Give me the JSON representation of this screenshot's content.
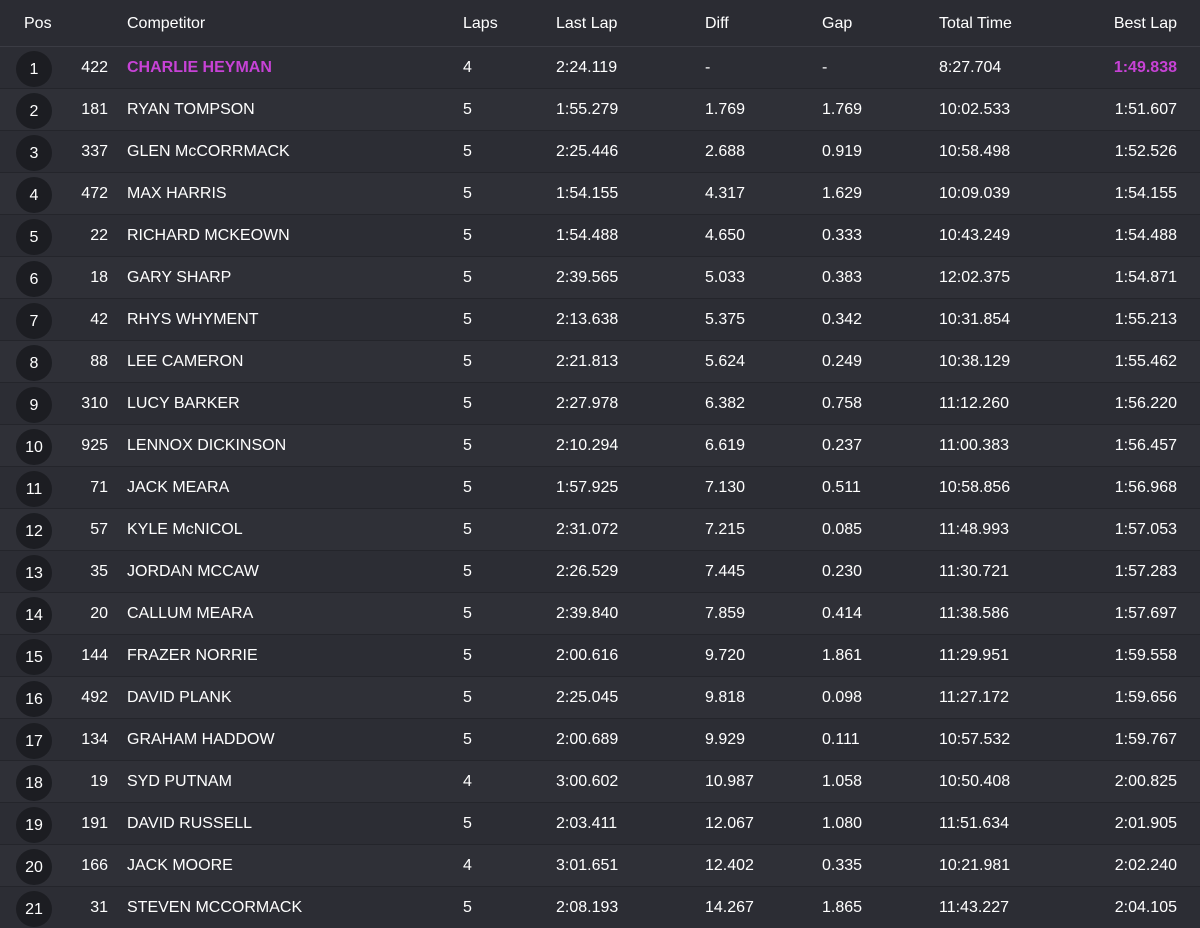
{
  "columns": {
    "pos": "Pos",
    "competitor": "Competitor",
    "laps": "Laps",
    "last_lap": "Last Lap",
    "diff": "Diff",
    "gap": "Gap",
    "total_time": "Total Time",
    "best_lap": "Best Lap"
  },
  "highlight_color": "#c742d6",
  "rows": [
    {
      "pos": "1",
      "num": "422",
      "name": "CHARLIE HEYMAN",
      "laps": "4",
      "last": "2:24.119",
      "diff": "-",
      "gap": "-",
      "total": "8:27.704",
      "best": "1:49.838",
      "highlight": true
    },
    {
      "pos": "2",
      "num": "181",
      "name": "RYAN TOMPSON",
      "laps": "5",
      "last": "1:55.279",
      "diff": "1.769",
      "gap": "1.769",
      "total": "10:02.533",
      "best": "1:51.607"
    },
    {
      "pos": "3",
      "num": "337",
      "name": "GLEN McCORRMACK",
      "laps": "5",
      "last": "2:25.446",
      "diff": "2.688",
      "gap": "0.919",
      "total": "10:58.498",
      "best": "1:52.526"
    },
    {
      "pos": "4",
      "num": "472",
      "name": "MAX HARRIS",
      "laps": "5",
      "last": "1:54.155",
      "diff": "4.317",
      "gap": "1.629",
      "total": "10:09.039",
      "best": "1:54.155"
    },
    {
      "pos": "5",
      "num": "22",
      "name": "RICHARD MCKEOWN",
      "laps": "5",
      "last": "1:54.488",
      "diff": "4.650",
      "gap": "0.333",
      "total": "10:43.249",
      "best": "1:54.488"
    },
    {
      "pos": "6",
      "num": "18",
      "name": "GARY SHARP",
      "laps": "5",
      "last": "2:39.565",
      "diff": "5.033",
      "gap": "0.383",
      "total": "12:02.375",
      "best": "1:54.871"
    },
    {
      "pos": "7",
      "num": "42",
      "name": "RHYS WHYMENT",
      "laps": "5",
      "last": "2:13.638",
      "diff": "5.375",
      "gap": "0.342",
      "total": "10:31.854",
      "best": "1:55.213"
    },
    {
      "pos": "8",
      "num": "88",
      "name": "LEE CAMERON",
      "laps": "5",
      "last": "2:21.813",
      "diff": "5.624",
      "gap": "0.249",
      "total": "10:38.129",
      "best": "1:55.462"
    },
    {
      "pos": "9",
      "num": "310",
      "name": "LUCY BARKER",
      "laps": "5",
      "last": "2:27.978",
      "diff": "6.382",
      "gap": "0.758",
      "total": "11:12.260",
      "best": "1:56.220"
    },
    {
      "pos": "10",
      "num": "925",
      "name": "LENNOX DICKINSON",
      "laps": "5",
      "last": "2:10.294",
      "diff": "6.619",
      "gap": "0.237",
      "total": "11:00.383",
      "best": "1:56.457"
    },
    {
      "pos": "11",
      "num": "71",
      "name": "JACK MEARA",
      "laps": "5",
      "last": "1:57.925",
      "diff": "7.130",
      "gap": "0.511",
      "total": "10:58.856",
      "best": "1:56.968"
    },
    {
      "pos": "12",
      "num": "57",
      "name": "KYLE McNICOL",
      "laps": "5",
      "last": "2:31.072",
      "diff": "7.215",
      "gap": "0.085",
      "total": "11:48.993",
      "best": "1:57.053"
    },
    {
      "pos": "13",
      "num": "35",
      "name": "JORDAN MCCAW",
      "laps": "5",
      "last": "2:26.529",
      "diff": "7.445",
      "gap": "0.230",
      "total": "11:30.721",
      "best": "1:57.283"
    },
    {
      "pos": "14",
      "num": "20",
      "name": "CALLUM MEARA",
      "laps": "5",
      "last": "2:39.840",
      "diff": "7.859",
      "gap": "0.414",
      "total": "11:38.586",
      "best": "1:57.697"
    },
    {
      "pos": "15",
      "num": "144",
      "name": "FRAZER NORRIE",
      "laps": "5",
      "last": "2:00.616",
      "diff": "9.720",
      "gap": "1.861",
      "total": "11:29.951",
      "best": "1:59.558"
    },
    {
      "pos": "16",
      "num": "492",
      "name": "DAVID PLANK",
      "laps": "5",
      "last": "2:25.045",
      "diff": "9.818",
      "gap": "0.098",
      "total": "11:27.172",
      "best": "1:59.656"
    },
    {
      "pos": "17",
      "num": "134",
      "name": "GRAHAM HADDOW",
      "laps": "5",
      "last": "2:00.689",
      "diff": "9.929",
      "gap": "0.111",
      "total": "10:57.532",
      "best": "1:59.767"
    },
    {
      "pos": "18",
      "num": "19",
      "name": "SYD PUTNAM",
      "laps": "4",
      "last": "3:00.602",
      "diff": "10.987",
      "gap": "1.058",
      "total": "10:50.408",
      "best": "2:00.825"
    },
    {
      "pos": "19",
      "num": "191",
      "name": "DAVID RUSSELL",
      "laps": "5",
      "last": "2:03.411",
      "diff": "12.067",
      "gap": "1.080",
      "total": "11:51.634",
      "best": "2:01.905"
    },
    {
      "pos": "20",
      "num": "166",
      "name": "JACK MOORE",
      "laps": "4",
      "last": "3:01.651",
      "diff": "12.402",
      "gap": "0.335",
      "total": "10:21.981",
      "best": "2:02.240"
    },
    {
      "pos": "21",
      "num": "31",
      "name": "STEVEN MCCORMACK",
      "laps": "5",
      "last": "2:08.193",
      "diff": "14.267",
      "gap": "1.865",
      "total": "11:43.227",
      "best": "2:04.105"
    }
  ]
}
